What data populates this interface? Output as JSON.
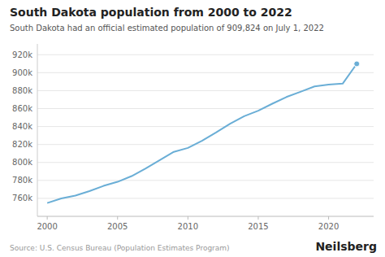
{
  "chart_data": {
    "type": "line",
    "title": "South Dakota population from 2000 to 2022",
    "subtitle": "South Dakota had an official estimated population of 909,824 on July 1, 2022",
    "source": "Source: U.S. Census Bureau (Population Estimates Program)",
    "branding": "Neilsberg",
    "x": [
      2000,
      2001,
      2002,
      2003,
      2004,
      2005,
      2006,
      2007,
      2008,
      2009,
      2010,
      2011,
      2012,
      2013,
      2014,
      2015,
      2016,
      2017,
      2018,
      2019,
      2020,
      2021,
      2022
    ],
    "values": [
      754844,
      759868,
      763085,
      768064,
      773888,
      778438,
      784796,
      793378,
      802544,
      811793,
      816166,
      824082,
      833354,
      843190,
      851508,
      857679,
      865454,
      872868,
      878698,
      884659,
      886667,
      887770,
      909824
    ],
    "color": "#6aaed6",
    "xlim": [
      1999.3,
      2023.2
    ],
    "xticks": [
      2000,
      2005,
      2010,
      2015,
      2020
    ],
    "ylim": [
      740000,
      932000
    ],
    "yticks": [
      {
        "value": 760000,
        "label": "760k"
      },
      {
        "value": 780000,
        "label": "780k"
      },
      {
        "value": 800000,
        "label": "800k"
      },
      {
        "value": 820000,
        "label": "820k"
      },
      {
        "value": 840000,
        "label": "840k"
      },
      {
        "value": 860000,
        "label": "860k"
      },
      {
        "value": 880000,
        "label": "880k"
      },
      {
        "value": 900000,
        "label": "900k"
      },
      {
        "value": 920000,
        "label": "920k"
      }
    ],
    "grid": true
  }
}
